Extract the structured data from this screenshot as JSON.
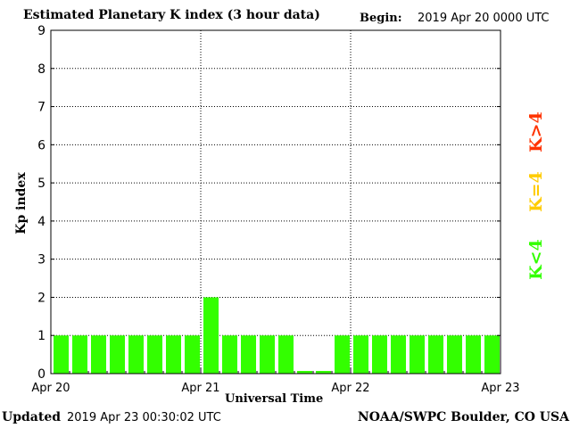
{
  "header": {
    "title": "Estimated Planetary K index (3 hour data)",
    "begin_label": "Begin:",
    "begin_value": "2019 Apr 20 0000 UTC"
  },
  "footer": {
    "updated_label": "Updated",
    "updated_value": "2019 Apr 23 00:30:02 UTC",
    "credit": "NOAA/SWPC Boulder, CO USA"
  },
  "legend": [
    {
      "label": "K>4",
      "color": "#ff3300"
    },
    {
      "label": "K=4",
      "color": "#ffcc00"
    },
    {
      "label": "K<4",
      "color": "#33ff00"
    }
  ],
  "chart_data": {
    "type": "bar",
    "title": "Estimated Planetary K index (3 hour data)",
    "xlabel": "Universal Time",
    "ylabel": "Kp index",
    "ylim": [
      0,
      9
    ],
    "yticks": [
      0,
      1,
      2,
      3,
      4,
      5,
      6,
      7,
      8,
      9
    ],
    "x_ticks": [
      "Apr 20",
      "Apr 21",
      "Apr 22",
      "Apr 23"
    ],
    "grid": true,
    "bar_color": "#33ff00",
    "values": [
      1,
      1,
      1,
      1,
      1,
      1,
      1,
      1,
      2,
      1,
      1,
      1,
      1,
      0.07,
      0.07,
      1,
      1,
      1,
      1,
      1,
      1,
      1,
      1,
      1
    ]
  }
}
